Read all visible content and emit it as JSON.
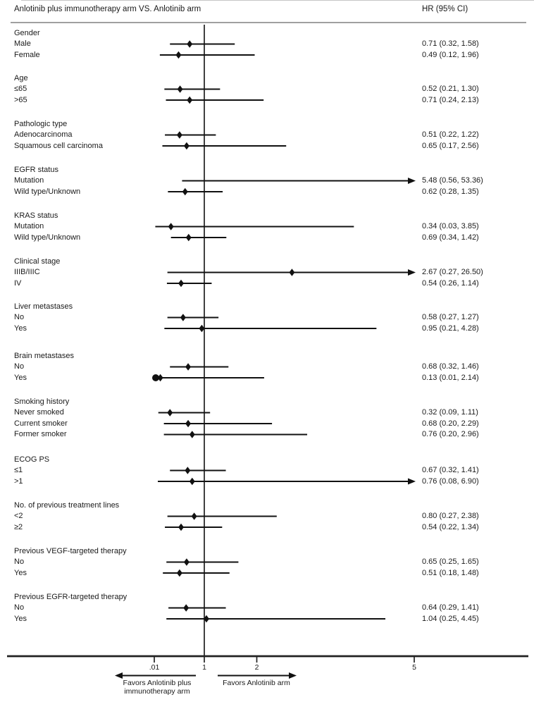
{
  "header": {
    "title": "Anlotinib plus immunotherapy arm VS. Anlotinib arm",
    "hr_column_label": "HR (95% CI)"
  },
  "footer": {
    "favors_left_line1": "Favors Anlotinib plus",
    "favors_left_line2": "immunotherapy arm",
    "favors_right": "Favors Anlotinib arm"
  },
  "chart_data": {
    "type": "forest",
    "title": "Anlotinib plus immunotherapy arm VS. Anlotinib arm",
    "effect_measure": "HR (95% CI)",
    "x_axis": {
      "scale": "linear",
      "ticks": [
        {
          "label": ".01",
          "value": 0.01
        },
        {
          "label": "1",
          "value": 1
        },
        {
          "label": "2",
          "value": 2
        },
        {
          "label": "5",
          "value": 5
        }
      ],
      "reference_line": 1,
      "visible_max": 6.2,
      "clamped_arrow_note": "upper CI beyond axis drawn as arrow"
    },
    "groups": [
      {
        "label": "Gender",
        "items": [
          {
            "label": "Male",
            "hr": 0.71,
            "ci_low": 0.32,
            "ci_high": 1.58
          },
          {
            "label": "Female",
            "hr": 0.49,
            "ci_low": 0.12,
            "ci_high": 1.96
          }
        ]
      },
      {
        "label": "Age",
        "items": [
          {
            "label": "≤65",
            "hr": 0.52,
            "ci_low": 0.21,
            "ci_high": 1.3
          },
          {
            "label": ">65",
            "hr": 0.71,
            "ci_low": 0.24,
            "ci_high": 2.13
          }
        ]
      },
      {
        "label": "Pathologic type",
        "items": [
          {
            "label": "Adenocarcinoma",
            "hr": 0.51,
            "ci_low": 0.22,
            "ci_high": 1.22
          },
          {
            "label": "Squamous cell carcinoma",
            "hr": 0.65,
            "ci_low": 0.17,
            "ci_high": 2.56
          }
        ]
      },
      {
        "label": "EGFR status",
        "items": [
          {
            "label": "Mutation",
            "hr": 5.48,
            "ci_low": 0.56,
            "ci_high": 53.36
          },
          {
            "label": "Wild type/Unknown",
            "hr": 0.62,
            "ci_low": 0.28,
            "ci_high": 1.35
          }
        ]
      },
      {
        "label": "KRAS status",
        "items": [
          {
            "label": "Mutation",
            "hr": 0.34,
            "ci_low": 0.03,
            "ci_high": 3.85
          },
          {
            "label": "Wild type/Unknown",
            "hr": 0.69,
            "ci_low": 0.34,
            "ci_high": 1.42
          }
        ]
      },
      {
        "label": "Clinical stage",
        "items": [
          {
            "label": "IIIB/IIIC",
            "hr": 2.67,
            "ci_low": 0.27,
            "ci_high": 26.5
          },
          {
            "label": "IV",
            "hr": 0.54,
            "ci_low": 0.26,
            "ci_high": 1.14
          }
        ]
      },
      {
        "label": "Liver metastases",
        "items": [
          {
            "label": "No",
            "hr": 0.58,
            "ci_low": 0.27,
            "ci_high": 1.27
          },
          {
            "label": "Yes",
            "hr": 0.95,
            "ci_low": 0.21,
            "ci_high": 4.28
          }
        ]
      },
      {
        "label": "Brain metastases",
        "items": [
          {
            "label": "No",
            "hr": 0.68,
            "ci_low": 0.32,
            "ci_high": 1.46
          },
          {
            "label": "Yes",
            "hr": 0.13,
            "ci_low": 0.01,
            "ci_high": 2.14
          }
        ]
      },
      {
        "label": "Smoking history",
        "items": [
          {
            "label": "Never smoked",
            "hr": 0.32,
            "ci_low": 0.09,
            "ci_high": 1.11
          },
          {
            "label": "Current smoker",
            "hr": 0.68,
            "ci_low": 0.2,
            "ci_high": 2.29
          },
          {
            "label": "Former smoker",
            "hr": 0.76,
            "ci_low": 0.2,
            "ci_high": 2.96
          }
        ]
      },
      {
        "label": "ECOG PS",
        "items": [
          {
            "label": "≤1",
            "hr": 0.67,
            "ci_low": 0.32,
            "ci_high": 1.41
          },
          {
            "label": ">1",
            "hr": 0.76,
            "ci_low": 0.08,
            "ci_high": 6.9
          }
        ]
      },
      {
        "label": "No. of previous treatment lines",
        "items": [
          {
            "label": "<2",
            "hr": 0.8,
            "ci_low": 0.27,
            "ci_high": 2.38
          },
          {
            "label": "≥2",
            "hr": 0.54,
            "ci_low": 0.22,
            "ci_high": 1.34
          }
        ]
      },
      {
        "label": "Previous VEGF-targeted therapy",
        "items": [
          {
            "label": "No",
            "hr": 0.65,
            "ci_low": 0.25,
            "ci_high": 1.65
          },
          {
            "label": "Yes",
            "hr": 0.51,
            "ci_low": 0.18,
            "ci_high": 1.48
          }
        ]
      },
      {
        "label": "Previous EGFR-targeted therapy",
        "items": [
          {
            "label": "No",
            "hr": 0.64,
            "ci_low": 0.29,
            "ci_high": 1.41
          },
          {
            "label": "Yes",
            "hr": 1.04,
            "ci_low": 0.25,
            "ci_high": 4.45
          }
        ]
      }
    ]
  }
}
